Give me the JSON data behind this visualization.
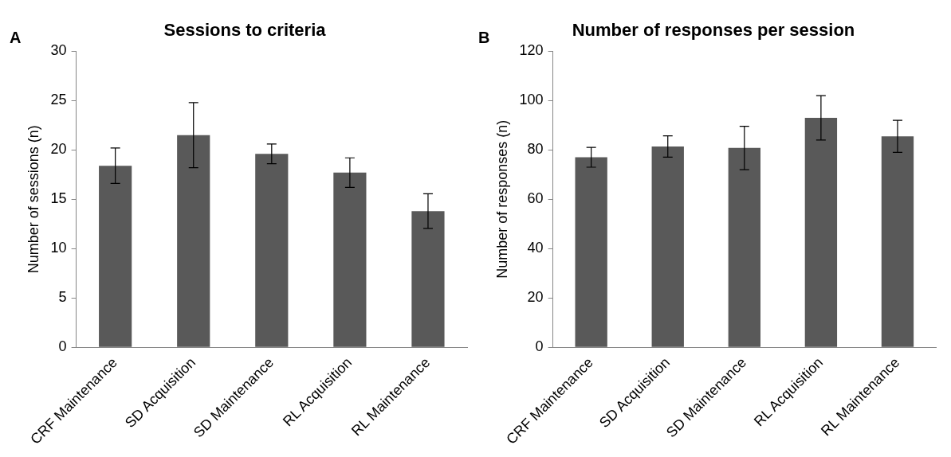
{
  "chart_data": [
    {
      "type": "bar",
      "title": "Sessions to criteria",
      "ylabel": "Number of sessions (n)",
      "annotations": [
        "A"
      ],
      "categories": [
        "CRF Maintenance",
        "SD Acquisition",
        "SD Maintenance",
        "RL Acquisition",
        "RL Maintenance"
      ],
      "values": [
        18.4,
        21.5,
        19.6,
        17.7,
        13.8
      ],
      "errors": [
        1.8,
        3.3,
        1.0,
        1.5,
        1.75
      ],
      "color": "#595959",
      "ylim": [
        0,
        30
      ],
      "yticks": [
        0,
        5,
        10,
        15,
        20,
        25,
        30
      ],
      "grid": false,
      "legend": false
    },
    {
      "type": "bar",
      "title": "Number of responses per session",
      "ylabel": "Number of responses (n)",
      "annotations": [
        "B"
      ],
      "categories": [
        "CRF Maintenance",
        "SD Acquisition",
        "SD Maintenance",
        "RL Acquisition",
        "RL Maintenance"
      ],
      "values": [
        77,
        81.4,
        80.8,
        93,
        85.5
      ],
      "errors": [
        4,
        4.3,
        8.8,
        9,
        6.5
      ],
      "color": "#595959",
      "ylim": [
        0,
        120
      ],
      "yticks": [
        0,
        20,
        40,
        60,
        80,
        100,
        120
      ],
      "grid": false,
      "legend": false
    }
  ]
}
